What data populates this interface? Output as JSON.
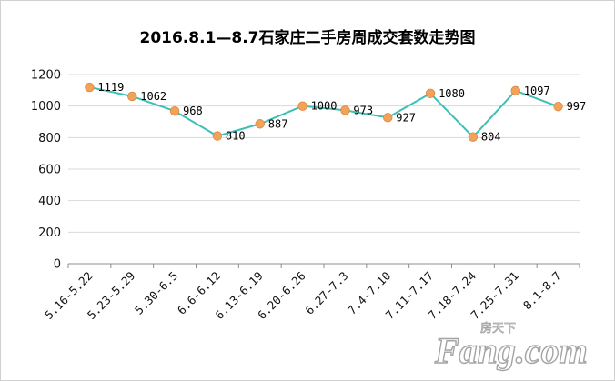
{
  "chart_data": {
    "type": "line",
    "title": "2016.8.1—8.7石家庄二手房周成交套数走势图",
    "categories": [
      "5.16-5.22",
      "5.23-5.29",
      "5.30-6.5",
      "6.6-6.12",
      "6.13-6.19",
      "6.20-6.26",
      "6.27-7.3",
      "7.4-7.10",
      "7.11-7.17",
      "7.18-7.24",
      "7.25-7.31",
      "8.1-8.7"
    ],
    "values": [
      1119,
      1062,
      968,
      810,
      887,
      1000,
      973,
      927,
      1080,
      804,
      1097,
      997
    ],
    "ylim": [
      0,
      1200
    ],
    "yticks": [
      0,
      200,
      400,
      600,
      800,
      1000,
      1200
    ],
    "grid": true,
    "legend": "none",
    "colors": {
      "line": "#3cbfb6",
      "marker": "#f2a25b",
      "marker_edge": "#d98a3e",
      "grid": "#d9d9d9"
    }
  },
  "watermark": {
    "brand": "Fang.com",
    "cn": "房天下"
  }
}
